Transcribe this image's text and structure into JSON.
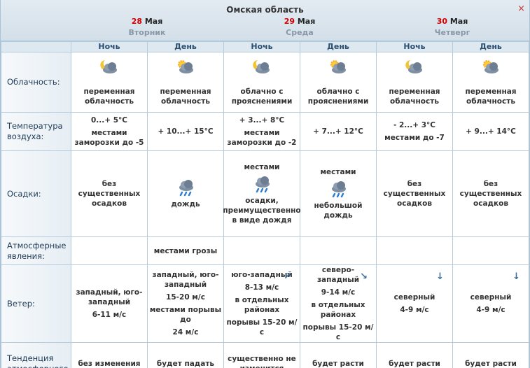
{
  "header": {
    "title": "Омская область",
    "close": "×",
    "days": [
      {
        "date": "28",
        "month": "Мая",
        "weekday": "Вторник"
      },
      {
        "date": "29",
        "month": "Мая",
        "weekday": "Среда"
      },
      {
        "date": "30",
        "month": "Мая",
        "weekday": "Четверг"
      }
    ]
  },
  "periods": [
    "Ночь",
    "День",
    "Ночь",
    "День",
    "Ночь",
    "День"
  ],
  "rows": [
    {
      "label": "Облачность:",
      "cells": [
        [
          "переменная облачность"
        ],
        [
          "переменная облачность"
        ],
        [
          "облачно с прояснениями"
        ],
        [
          "облачно с прояснениями"
        ],
        [
          "переменная облачность"
        ],
        [
          "переменная облачность"
        ]
      ]
    },
    {
      "label": "Температура воздуха:",
      "cells": [
        [
          "0...+ 5°C",
          "местами заморозки до -5"
        ],
        [
          "+ 10...+ 15°C"
        ],
        [
          "+ 3...+ 8°C",
          "местами заморозки до -2"
        ],
        [
          "+ 7...+ 12°C"
        ],
        [
          "- 2...+ 3°C",
          "местами до -7"
        ],
        [
          "+ 9...+ 14°C"
        ]
      ]
    },
    {
      "label": "Осадки:",
      "cells": [
        [
          "без существенных осадков"
        ],
        [
          "дождь"
        ],
        [
          "местами",
          "осадки, преимущественно в виде дождя"
        ],
        [
          "местами",
          "небольшой дождь"
        ],
        [
          "без существенных осадков"
        ],
        [
          "без существенных осадков"
        ]
      ]
    },
    {
      "label": "Атмосферные явления:",
      "cells": [
        null,
        [
          "местами грозы"
        ],
        null,
        null,
        null,
        null
      ]
    },
    {
      "label": "Ветер:",
      "cells": [
        [
          "западный, юго-западный",
          "6-11 м/с"
        ],
        [
          "западный, юго-западный",
          "15-20 м/с",
          "местами порывы до",
          "24 м/с"
        ],
        [
          "юго-западный",
          "8-13 м/с",
          "в отдельных районах",
          "порывы 15-20 м/с"
        ],
        [
          "северо-западный",
          "9-14 м/с",
          "в отдельных районах",
          "порывы 15-20 м/с"
        ],
        [
          "северный",
          "4-9 м/с"
        ],
        [
          "северный",
          "4-9 м/с"
        ]
      ]
    },
    {
      "label": "Тенденция атмосферного",
      "cells": [
        [
          "без изменения"
        ],
        [
          "будет падать"
        ],
        [
          "существенно не изменится"
        ],
        [
          "будет расти"
        ],
        [
          "будет расти"
        ],
        [
          "будет расти"
        ]
      ]
    }
  ]
}
